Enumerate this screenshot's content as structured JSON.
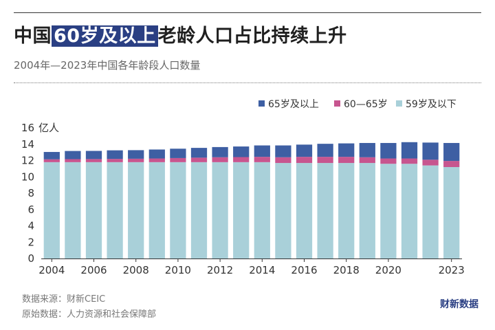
{
  "header": {
    "title_pre": "中国",
    "title_highlight": "60岁及以上",
    "title_post": "老龄人口占比持续上升",
    "subtitle": "2004年—2023年中国各年龄段人口数量"
  },
  "footer": {
    "source": "数据来源：财新CEIC",
    "origin": "原始数据：人力资源和社会保障部",
    "brand": "财新数据"
  },
  "colors": {
    "series_65plus": "#3e5fa3",
    "series_60_65": "#c7558f",
    "series_59below": "#a9d0d9",
    "highlight": "#2a3f83"
  },
  "chart_data": {
    "type": "bar",
    "stacked": true,
    "ylabel": "亿人",
    "ylim": [
      0,
      16
    ],
    "yticks": [
      0,
      2,
      4,
      6,
      8,
      10,
      12,
      14,
      16
    ],
    "xticks": [
      "2004",
      "2006",
      "2008",
      "2010",
      "2012",
      "2014",
      "2016",
      "2018",
      "2020",
      "2023"
    ],
    "legend_position": "top-right",
    "grid": false,
    "categories": [
      "2004",
      "2005",
      "2006",
      "2007",
      "2008",
      "2009",
      "2010",
      "2011",
      "2012",
      "2013",
      "2014",
      "2015",
      "2016",
      "2017",
      "2018",
      "2019",
      "2020",
      "2021",
      "2022",
      "2023"
    ],
    "series": [
      {
        "name": "59岁及以下",
        "color_key": "series_59below",
        "values": [
          11.8,
          11.8,
          11.8,
          11.8,
          11.8,
          11.8,
          11.8,
          11.8,
          11.8,
          11.8,
          11.8,
          11.7,
          11.7,
          11.7,
          11.7,
          11.7,
          11.6,
          11.6,
          11.4,
          11.2
        ]
      },
      {
        "name": "60—65岁",
        "color_key": "series_60_65",
        "values": [
          0.35,
          0.37,
          0.38,
          0.4,
          0.42,
          0.45,
          0.5,
          0.55,
          0.6,
          0.62,
          0.65,
          0.7,
          0.75,
          0.75,
          0.75,
          0.7,
          0.65,
          0.65,
          0.7,
          0.75
        ]
      },
      {
        "name": "65岁及以上",
        "color_key": "series_65plus",
        "values": [
          0.9,
          1.0,
          1.0,
          1.05,
          1.05,
          1.1,
          1.15,
          1.2,
          1.25,
          1.3,
          1.4,
          1.45,
          1.5,
          1.6,
          1.65,
          1.75,
          1.9,
          2.0,
          2.1,
          2.2
        ]
      }
    ]
  }
}
